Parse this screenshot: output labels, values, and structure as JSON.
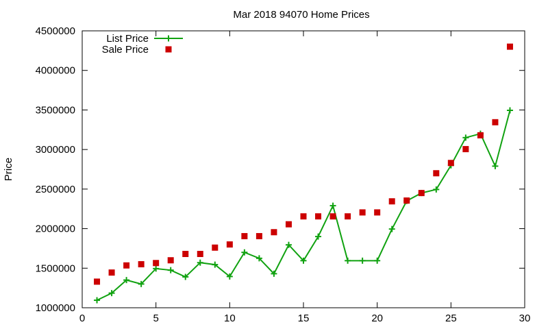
{
  "chart_data": {
    "type": "line",
    "title": "Mar 2018 94070 Home Prices",
    "xlabel": "",
    "ylabel": "Price",
    "xlim": [
      0,
      30
    ],
    "ylim": [
      1000000,
      4500000
    ],
    "x_ticks": [
      0,
      5,
      10,
      15,
      20,
      25,
      30
    ],
    "y_ticks": [
      1000000,
      1500000,
      2000000,
      2500000,
      3000000,
      3500000,
      4000000,
      4500000
    ],
    "grid": false,
    "legend_position": "top-left",
    "series": [
      {
        "name": "List Price",
        "style": "line-plus",
        "color": "#11a211",
        "x": [
          1,
          2,
          3,
          4,
          5,
          6,
          7,
          8,
          9,
          10,
          11,
          12,
          13,
          14,
          15,
          16,
          17,
          18,
          19,
          20,
          21,
          22,
          23,
          24,
          25,
          26,
          27,
          28,
          29
        ],
        "y": [
          1095000,
          1185000,
          1350000,
          1300000,
          1495000,
          1475000,
          1390000,
          1570000,
          1545000,
          1395000,
          1700000,
          1625000,
          1430000,
          1795000,
          1595000,
          1900000,
          2290000,
          1595000,
          1595000,
          1595000,
          1995000,
          2350000,
          2450000,
          2495000,
          2800000,
          3150000,
          3200000,
          2790000,
          3495000
        ]
      },
      {
        "name": "Sale Price",
        "style": "square",
        "color": "#cc0000",
        "x": [
          1,
          2,
          3,
          4,
          5,
          6,
          7,
          8,
          9,
          10,
          11,
          12,
          13,
          14,
          15,
          16,
          17,
          18,
          19,
          20,
          21,
          22,
          23,
          24,
          25,
          26,
          27,
          28,
          29
        ],
        "y": [
          1330000,
          1445000,
          1535000,
          1550000,
          1565000,
          1600000,
          1680000,
          1680000,
          1760000,
          1800000,
          1905000,
          1905000,
          1955000,
          2055000,
          2155000,
          2155000,
          2155000,
          2155000,
          2205000,
          2205000,
          2345000,
          2355000,
          2450000,
          2700000,
          2830000,
          3005000,
          3180000,
          3345000,
          4300000
        ]
      }
    ]
  }
}
